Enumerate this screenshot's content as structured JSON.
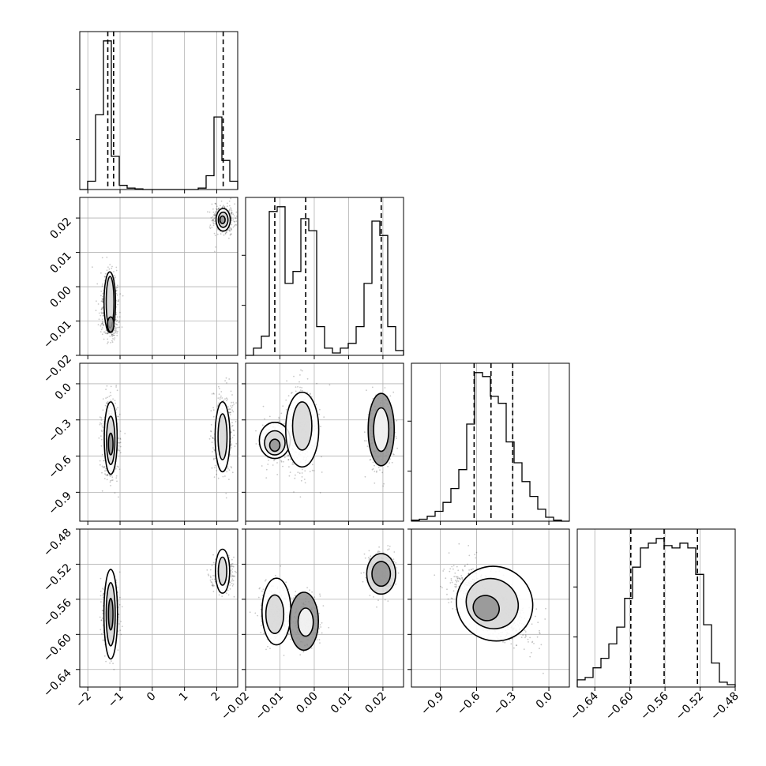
{
  "chart_data": {
    "type": "corner",
    "title": "",
    "grid": true,
    "parameters": [
      {
        "range": [
          -2.25,
          2.65
        ],
        "ticks": [
          -2,
          -1,
          0,
          1,
          2
        ],
        "tick_labels": [
          "−2",
          "−1",
          "0",
          "1",
          "2"
        ],
        "quantiles": [
          -1.38,
          -1.2,
          2.2
        ]
      },
      {
        "range": [
          -0.02,
          0.026
        ],
        "ticks": [
          -0.02,
          -0.01,
          0.0,
          0.01,
          0.02
        ],
        "tick_labels": [
          "−0.02",
          "−0.01",
          "0.00",
          "0.01",
          "0.02"
        ],
        "quantiles": [
          -0.0115,
          -0.0025,
          0.0195
        ]
      },
      {
        "range": [
          -1.14,
          0.17
        ],
        "ticks": [
          -0.9,
          -0.6,
          -0.3,
          0.0
        ],
        "tick_labels": [
          "−0.9",
          "−0.6",
          "−0.3",
          "0.0"
        ],
        "quantiles": [
          -0.62,
          -0.48,
          -0.3
        ]
      },
      {
        "range": [
          -0.66,
          -0.48
        ],
        "ticks": [
          -0.64,
          -0.6,
          -0.56,
          -0.52,
          -0.48
        ],
        "tick_labels": [
          "−0.64",
          "−0.60",
          "−0.56",
          "−0.52",
          "−0.48"
        ],
        "quantiles": [
          -0.599,
          -0.561,
          -0.523
        ]
      }
    ],
    "histograms": [
      {
        "parameter": 0,
        "bin_edges": [
          -2.25,
          -2.005,
          -1.76,
          -1.515,
          -1.27,
          -1.025,
          -0.78,
          -0.535,
          -0.29,
          -0.045,
          0.2,
          0.445,
          0.69,
          0.935,
          1.18,
          1.425,
          1.67,
          1.915,
          2.16,
          2.405,
          2.65
        ],
        "counts": [
          0,
          12,
          108,
          215,
          48,
          6,
          2,
          1,
          0,
          0,
          0,
          0,
          0,
          0,
          0,
          2,
          20,
          105,
          42,
          12
        ]
      },
      {
        "parameter": 1,
        "bin_edges": [
          -0.02,
          -0.0177,
          -0.0154,
          -0.0131,
          -0.0108,
          -0.0085,
          -0.0062,
          -0.0039,
          -0.0016,
          0.0007,
          0.003,
          0.0053,
          0.0076,
          0.0099,
          0.0122,
          0.0145,
          0.0168,
          0.0191,
          0.0214,
          0.0237,
          0.026
        ],
        "counts": [
          0,
          3,
          8,
          60,
          62,
          30,
          35,
          57,
          52,
          12,
          3,
          1,
          3,
          5,
          12,
          30,
          56,
          50,
          12,
          2
        ]
      },
      {
        "parameter": 2,
        "bin_edges": [
          -1.14,
          -1.0745,
          -1.009,
          -0.9435,
          -0.878,
          -0.8125,
          -0.747,
          -0.6815,
          -0.616,
          -0.5505,
          -0.485,
          -0.4195,
          -0.354,
          -0.2885,
          -0.223,
          -0.1575,
          -0.092,
          -0.0265,
          0.039,
          0.1045,
          0.17
        ],
        "counts": [
          1,
          2,
          5,
          10,
          19,
          33,
          52,
          98,
          150,
          146,
          126,
          119,
          80,
          59,
          40,
          25,
          12,
          4,
          1,
          0
        ]
      },
      {
        "parameter": 3,
        "bin_edges": [
          -0.66,
          -0.651,
          -0.642,
          -0.633,
          -0.624,
          -0.615,
          -0.606,
          -0.597,
          -0.588,
          -0.579,
          -0.57,
          -0.561,
          -0.552,
          -0.543,
          -0.534,
          -0.525,
          -0.516,
          -0.507,
          -0.498,
          -0.489,
          -0.48
        ],
        "counts": [
          3,
          4,
          8,
          12,
          18,
          25,
          37,
          50,
          58,
          60,
          62,
          59,
          58,
          60,
          58,
          47,
          26,
          10,
          2,
          1
        ]
      }
    ],
    "scatter_blobs": [
      {
        "x_param": 0,
        "y_param": 1,
        "points": 900,
        "components": [
          {
            "cx": -1.32,
            "cy": -0.002,
            "sx": 0.14,
            "sy": 0.0035,
            "weight": 0.5
          },
          {
            "cx": -1.3,
            "cy": -0.0115,
            "sx": 0.12,
            "sy": 0.0018,
            "weight": 0.35
          },
          {
            "cx": 2.2,
            "cy": 0.0195,
            "sx": 0.17,
            "sy": 0.0022,
            "weight": 0.6
          }
        ]
      },
      {
        "x_param": 0,
        "y_param": 2,
        "points": 900,
        "components": [
          {
            "cx": -1.3,
            "cy": -0.45,
            "sx": 0.12,
            "sy": 0.17,
            "weight": 1.0
          },
          {
            "cx": 2.2,
            "cy": -0.4,
            "sx": 0.17,
            "sy": 0.17,
            "weight": 0.55
          }
        ]
      },
      {
        "x_param": 1,
        "y_param": 2,
        "points": 900,
        "components": [
          {
            "cx": -0.0115,
            "cy": -0.48,
            "sx": 0.0023,
            "sy": 0.09,
            "weight": 0.4
          },
          {
            "cx": -0.0035,
            "cy": -0.38,
            "sx": 0.0022,
            "sy": 0.17,
            "weight": 0.6
          },
          {
            "cx": 0.0195,
            "cy": -0.4,
            "sx": 0.0019,
            "sy": 0.16,
            "weight": 0.55
          }
        ]
      },
      {
        "x_param": 0,
        "y_param": 3,
        "points": 900,
        "components": [
          {
            "cx": -1.3,
            "cy": -0.575,
            "sx": 0.12,
            "sy": 0.018,
            "weight": 1.0
          },
          {
            "cx": 2.2,
            "cy": -0.53,
            "sx": 0.17,
            "sy": 0.01,
            "weight": 0.55
          }
        ]
      },
      {
        "x_param": 1,
        "y_param": 3,
        "points": 900,
        "components": [
          {
            "cx": -0.0115,
            "cy": -0.575,
            "sx": 0.0023,
            "sy": 0.016,
            "weight": 0.5
          },
          {
            "cx": -0.0025,
            "cy": -0.585,
            "sx": 0.0022,
            "sy": 0.014,
            "weight": 0.5
          },
          {
            "cx": 0.0195,
            "cy": -0.53,
            "sx": 0.0019,
            "sy": 0.011,
            "weight": 0.55
          }
        ]
      },
      {
        "x_param": 2,
        "y_param": 3,
        "points": 900,
        "components": [
          {
            "cx": -0.48,
            "cy": -0.566,
            "sx": 0.16,
            "sy": 0.02,
            "weight": 1.0,
            "rho": -0.62
          }
        ]
      }
    ],
    "contour_ellipses": [
      {
        "x_param": 0,
        "y_param": 1,
        "shapes": [
          {
            "cx": -1.32,
            "cy": -0.0045,
            "rx": 0.18,
            "ry": 0.0088
          },
          {
            "cx": -1.31,
            "cy": -0.0045,
            "rx": 0.12,
            "ry": 0.0075
          },
          {
            "cx": -1.29,
            "cy": -0.011,
            "rx": 0.1,
            "ry": 0.0022
          },
          {
            "cx": 2.2,
            "cy": 0.0195,
            "rx": 0.22,
            "ry": 0.0033
          },
          {
            "cx": 2.2,
            "cy": 0.0195,
            "rx": 0.15,
            "ry": 0.0022
          },
          {
            "cx": 2.18,
            "cy": 0.0195,
            "rx": 0.08,
            "ry": 0.0011
          }
        ]
      },
      {
        "x_param": 0,
        "y_param": 2,
        "shapes": [
          {
            "cx": -1.29,
            "cy": -0.45,
            "rx": 0.2,
            "ry": 0.3
          },
          {
            "cx": -1.29,
            "cy": -0.47,
            "rx": 0.13,
            "ry": 0.2
          },
          {
            "cx": -1.29,
            "cy": -0.5,
            "rx": 0.07,
            "ry": 0.09
          },
          {
            "cx": 2.18,
            "cy": -0.44,
            "rx": 0.23,
            "ry": 0.29
          },
          {
            "cx": 2.18,
            "cy": -0.44,
            "rx": 0.14,
            "ry": 0.19
          }
        ]
      },
      {
        "x_param": 1,
        "y_param": 2,
        "shapes": [
          {
            "cx": -0.0115,
            "cy": -0.47,
            "rx": 0.0045,
            "ry": 0.15
          },
          {
            "cx": -0.0115,
            "cy": -0.49,
            "rx": 0.003,
            "ry": 0.1
          },
          {
            "cx": -0.0115,
            "cy": -0.51,
            "rx": 0.0015,
            "ry": 0.05
          },
          {
            "cx": -0.0035,
            "cy": -0.38,
            "rx": 0.0048,
            "ry": 0.31
          },
          {
            "cx": -0.0035,
            "cy": -0.35,
            "rx": 0.0028,
            "ry": 0.2
          },
          {
            "cx": 0.0195,
            "cy": -0.38,
            "rx": 0.0038,
            "ry": 0.3
          },
          {
            "cx": 0.0195,
            "cy": -0.38,
            "rx": 0.0022,
            "ry": 0.18
          }
        ]
      },
      {
        "x_param": 0,
        "y_param": 3,
        "shapes": [
          {
            "cx": -1.29,
            "cy": -0.577,
            "rx": 0.21,
            "ry": 0.051
          },
          {
            "cx": -1.29,
            "cy": -0.577,
            "rx": 0.14,
            "ry": 0.036
          },
          {
            "cx": -1.29,
            "cy": -0.577,
            "rx": 0.07,
            "ry": 0.018
          },
          {
            "cx": 2.18,
            "cy": -0.528,
            "rx": 0.22,
            "ry": 0.025
          },
          {
            "cx": 2.18,
            "cy": -0.528,
            "rx": 0.13,
            "ry": 0.016
          }
        ]
      },
      {
        "x_param": 1,
        "y_param": 3,
        "shapes": [
          {
            "cx": -0.011,
            "cy": -0.574,
            "rx": 0.0042,
            "ry": 0.038
          },
          {
            "cx": -0.0115,
            "cy": -0.577,
            "rx": 0.0026,
            "ry": 0.022
          },
          {
            "cx": -0.003,
            "cy": -0.585,
            "rx": 0.0042,
            "ry": 0.033
          },
          {
            "cx": -0.0025,
            "cy": -0.586,
            "rx": 0.0022,
            "ry": 0.016
          },
          {
            "cx": 0.0195,
            "cy": -0.531,
            "rx": 0.0042,
            "ry": 0.023
          },
          {
            "cx": 0.0195,
            "cy": -0.531,
            "rx": 0.0027,
            "ry": 0.014
          }
        ]
      },
      {
        "x_param": 2,
        "y_param": 3,
        "shapes": [
          {
            "cx": -0.45,
            "cy": -0.565,
            "rx": 0.32,
            "ry": 0.042,
            "rotate": 0.55
          },
          {
            "cx": -0.47,
            "cy": -0.565,
            "rx": 0.22,
            "ry": 0.028,
            "rotate": 0.55
          },
          {
            "cx": -0.52,
            "cy": -0.57,
            "rx": 0.11,
            "ry": 0.014,
            "rotate": 0.55
          }
        ]
      }
    ]
  }
}
